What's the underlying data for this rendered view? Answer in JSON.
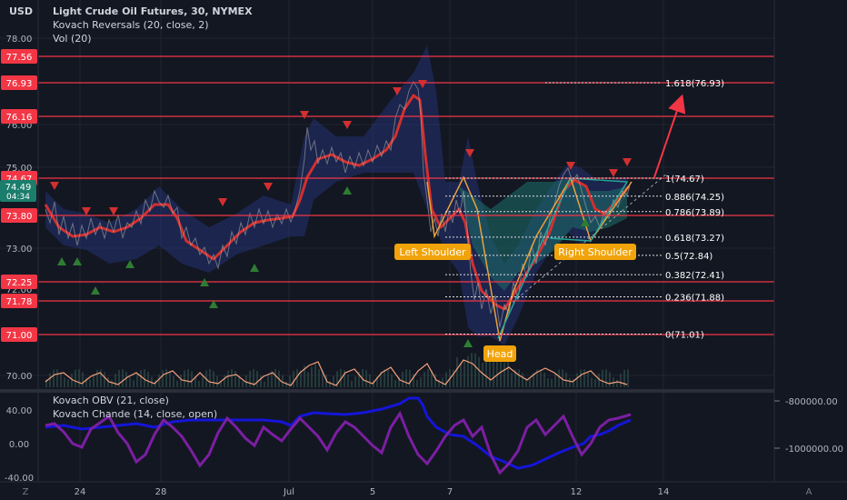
{
  "header": {
    "currency": "USD",
    "symbol_line": "Light Crude Oil Futures, 30, NYMEX",
    "indicator1": "Kovach Reversals (20, close, 2)",
    "indicator2": "Vol (20)",
    "lower_indicator1": "Kovach OBV (21, close)",
    "lower_indicator2": "Kovach Chande (14, close, open)"
  },
  "bottom_bar": {
    "z_label": "Z",
    "a_label": "A"
  },
  "colors": {
    "background": "#131722",
    "red_line": "#f23645",
    "price_line": "#d32f2f",
    "teal": "#26a69a",
    "pattern_label_bg": "#f0a30a",
    "obv": "#1515d8",
    "chande": "#7b1fa2",
    "volume_avg": "#f7a17a"
  },
  "chart_data": {
    "type": "line",
    "main_pane": {
      "y_axis_ticks": [
        "78.00",
        "76.00",
        "75.00",
        "73.00",
        "72.00",
        "71.00",
        "70.00"
      ],
      "x_axis_ticks": [
        "24",
        "28",
        "Jul",
        "5",
        "7",
        "12",
        "14"
      ],
      "current_price": "74.49",
      "countdown": "04:34",
      "horizontal_levels": [
        {
          "label": "77.56",
          "value": 77.56
        },
        {
          "label": "76.93",
          "value": 76.93
        },
        {
          "label": "76.16",
          "value": 76.16
        },
        {
          "label": "74.67",
          "value": 74.67
        },
        {
          "label": "73.80",
          "value": 73.8
        },
        {
          "label": "72.25",
          "value": 72.25
        },
        {
          "label": "71.78",
          "value": 71.78
        },
        {
          "label": "71.00",
          "value": 71.0
        }
      ],
      "fibonacci_labels": [
        "1.618(76.93)",
        "1(74.67)",
        "0.886(74.25)",
        "0.786(73.89)",
        "0.618(73.27)",
        "0.5(72.84)",
        "0.382(72.41)",
        "0.236(71.88)",
        "0(71.01)"
      ],
      "fibonacci_values": [
        76.93,
        74.67,
        74.25,
        73.89,
        73.27,
        72.84,
        72.41,
        71.88,
        71.01
      ],
      "pattern_labels": [
        "Left Shoulder",
        "Head",
        "Right Shoulder"
      ],
      "series": [
        {
          "name": "Price",
          "x": [
            0,
            5,
            10,
            15,
            20,
            25,
            30,
            35,
            40,
            45,
            50,
            55,
            60,
            65,
            70,
            75,
            80,
            85,
            90,
            95,
            100
          ],
          "y": [
            74.2,
            73.3,
            73.5,
            73.9,
            72.7,
            73.4,
            73.8,
            75.6,
            75.2,
            75.4,
            76.5,
            73.6,
            74.4,
            71.6,
            71.0,
            72.6,
            74.6,
            73.8,
            73.4,
            74.1,
            74.5
          ]
        }
      ]
    },
    "lower_pane": {
      "left_ticks": [
        "40.00",
        "0.00",
        "-40.00"
      ],
      "right_ticks": [
        "-800000.00",
        "-1000000.00"
      ],
      "series": [
        {
          "name": "Kovach OBV",
          "y": [
            -950000,
            -940000,
            -955000,
            -930000,
            -910000,
            -940000,
            -960000,
            -900000,
            -880000,
            -870000,
            -880000,
            -860000,
            -780000,
            -850000,
            -1000000,
            -1060000,
            -1000000,
            -950000,
            -960000,
            -940000,
            -900000
          ]
        },
        {
          "name": "Kovach Chande",
          "y": [
            30,
            20,
            5,
            25,
            0,
            -30,
            -20,
            10,
            25,
            -10,
            5,
            -20,
            20,
            0,
            -35,
            -40,
            30,
            -20,
            15,
            35,
            30
          ]
        }
      ]
    }
  }
}
